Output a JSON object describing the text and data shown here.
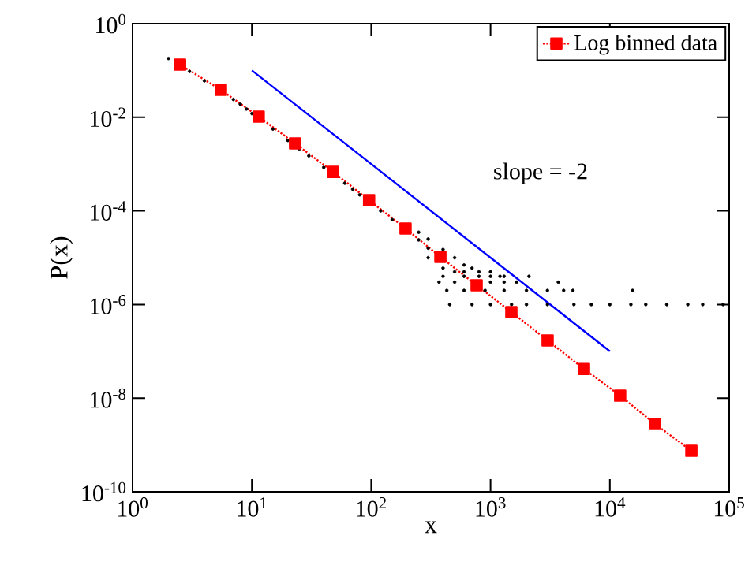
{
  "chart_data": {
    "type": "scatter",
    "xlabel": "x",
    "ylabel": "P(x)",
    "log": "xy",
    "legend": "top right",
    "xlim": [
      1,
      100000
    ],
    "ylim": [
      1e-10,
      1
    ],
    "xticks": [
      {
        "value": 1,
        "label": "10$^{0}$"
      },
      {
        "value": 10,
        "label": "10$^{1}$"
      },
      {
        "value": 100,
        "label": "10$^{2}$"
      },
      {
        "value": 1000,
        "label": "10$^{3}$"
      },
      {
        "value": 10000,
        "label": "10$^{4}$"
      },
      {
        "value": 100000,
        "label": "10$^{5}$"
      }
    ],
    "yticks": [
      {
        "value": 1e-10,
        "label": "10$^{-10}$"
      },
      {
        "value": 1e-08,
        "label": "10$^{-8}$"
      },
      {
        "value": 1e-06,
        "label": "10$^{-6}$"
      },
      {
        "value": 0.0001,
        "label": "10$^{-4}$"
      },
      {
        "value": 0.01,
        "label": "10$^{-2}$"
      },
      {
        "value": 1,
        "label": "10$^{0}$"
      }
    ],
    "annotations": [
      "slope = -2"
    ],
    "series": [
      {
        "color": "#000000",
        "marker": "circle",
        "x": [
          2,
          3,
          4,
          7,
          8,
          9,
          10,
          15,
          20,
          25,
          30,
          40,
          60,
          70,
          80,
          120,
          150,
          250,
          250,
          300,
          300,
          300,
          400,
          400,
          500,
          500,
          600,
          600,
          700,
          800,
          1000,
          1200,
          400,
          600,
          800,
          1000,
          1300,
          2100,
          370,
          500,
          1000,
          1300,
          1650,
          3700,
          430,
          600,
          900,
          1300,
          2000,
          3000,
          4100,
          4900,
          15500,
          455,
          700,
          1000,
          1500,
          2000,
          3000,
          5000,
          7000,
          10000,
          15000,
          20000,
          30000,
          45000,
          60000,
          89000
        ],
        "values": [
          0.18,
          0.095,
          0.06,
          0.024,
          0.019,
          0.015,
          0.012,
          0.0056,
          0.0032,
          0.0021,
          0.0015,
          0.00085,
          0.00039,
          0.00029,
          0.00022,
          0.0001,
          6.5e-05,
          2.4e-05,
          3.5e-05,
          1.6e-05,
          2.5e-05,
          1e-05,
          1.5e-05,
          6e-06,
          1e-05,
          5e-06,
          7e-06,
          5e-06,
          6e-06,
          5e-06,
          5e-06,
          4e-06,
          4e-06,
          4e-06,
          4e-06,
          4e-06,
          4e-06,
          4e-06,
          3e-06,
          3e-06,
          3e-06,
          3e-06,
          3e-06,
          3e-06,
          2e-06,
          2e-06,
          2e-06,
          2e-06,
          2e-06,
          2e-06,
          2e-06,
          2e-06,
          2e-06,
          1e-06,
          1e-06,
          1e-06,
          1e-06,
          1e-06,
          1e-06,
          1e-06,
          1e-06,
          1e-06,
          1e-06,
          1e-06,
          1e-06,
          1e-06,
          1e-06,
          1e-06
        ]
      },
      {
        "type": "line",
        "name": "Log binned data",
        "color": "#ff0000",
        "marker": "square",
        "line_style": "dotted",
        "x": [
          2.5,
          5.5,
          11.4,
          23,
          48,
          96,
          194,
          380,
          765,
          1495,
          3010,
          6070,
          12200,
          23900,
          48200
        ],
        "values": [
          0.133,
          0.0385,
          0.0103,
          0.00276,
          0.00068,
          0.000169,
          4.2e-05,
          1.04e-05,
          2.58e-06,
          6.9e-07,
          1.71e-07,
          4.2e-08,
          1.13e-08,
          2.8e-09,
          7.5e-10
        ]
      },
      {
        "type": "line",
        "color": "#0000ff",
        "marker": "none",
        "line_style": "solid",
        "x": [
          10,
          10000
        ],
        "values": [
          0.1,
          1e-07
        ]
      }
    ]
  }
}
